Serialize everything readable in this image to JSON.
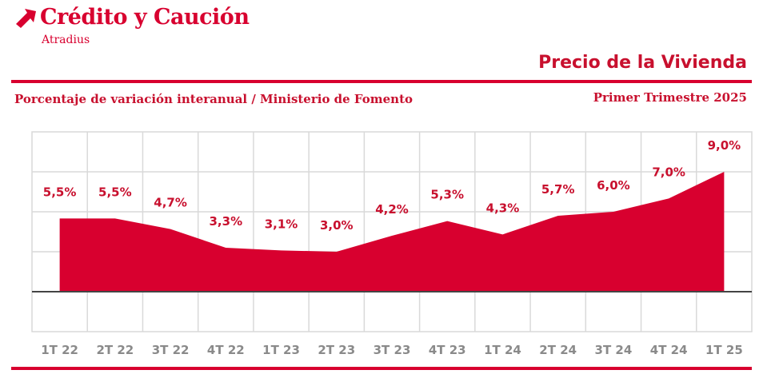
{
  "brand": {
    "name": "Crédito y Caución",
    "sub": "Atradius",
    "color": "#d8002f"
  },
  "header": {
    "title": "Precio de la Vivienda",
    "subtitle": "Porcentaje de variación interanual / Ministerio de Fomento",
    "period": "Primer Trimestre 2025"
  },
  "chart_data": {
    "type": "area",
    "categories": [
      "1T 22",
      "2T 22",
      "3T 22",
      "4T 22",
      "1T 23",
      "2T 23",
      "3T 23",
      "4T 23",
      "1T 24",
      "2T 24",
      "3T 24",
      "4T 24",
      "1T 25"
    ],
    "values": [
      5.5,
      5.5,
      4.7,
      3.3,
      3.1,
      3.0,
      4.2,
      5.3,
      4.3,
      5.7,
      6.0,
      7.0,
      9.0
    ],
    "data_labels": [
      "5,5%",
      "5,5%",
      "4,7%",
      "3,3%",
      "3,1%",
      "3,0%",
      "4,2%",
      "5,3%",
      "4,3%",
      "5,7%",
      "6,0%",
      "7,0%",
      "9,0%"
    ],
    "ylim": [
      -3,
      12
    ],
    "grid": true,
    "fill_color": "#d8002f"
  }
}
